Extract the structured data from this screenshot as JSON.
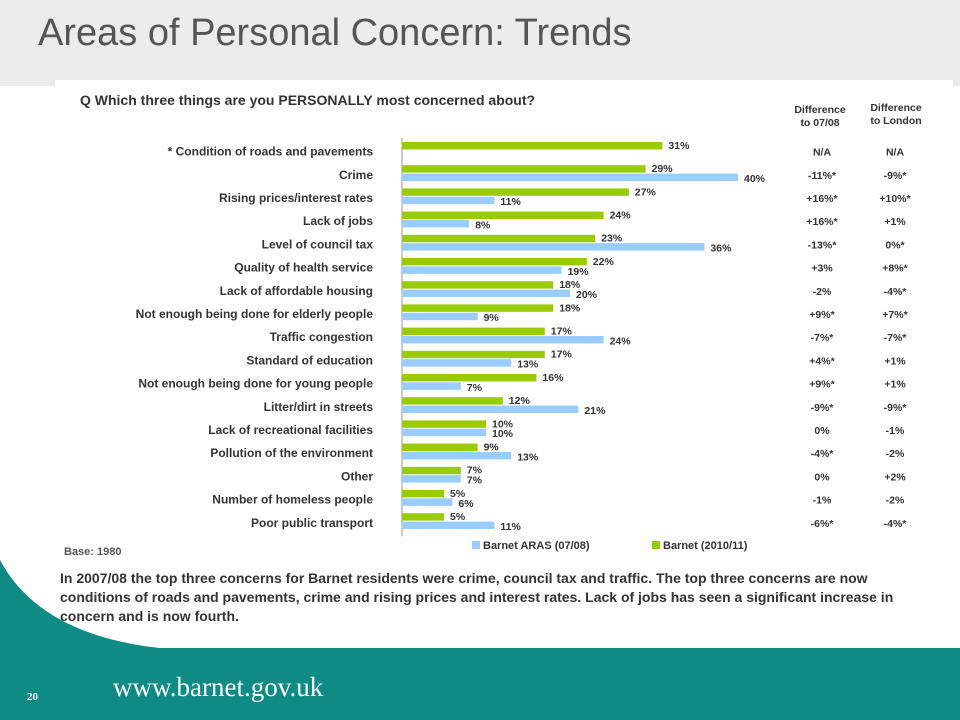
{
  "slide": {
    "title": "Areas of Personal Concern: Trends",
    "question": "Q Which three things are you PERSONALLY most concerned about?",
    "base": "Base: 1980",
    "summary": "In 2007/08 the top three concerns for Barnet residents were crime, council tax and traffic. The top three concerns are now conditions of roads and pavements, crime and rising prices and interest rates.  Lack of jobs has seen a significant increase in concern and is now fourth.",
    "footer_url": "www.barnet.gov.uk",
    "page_number": "20"
  },
  "columns": {
    "diff_0708_line1": "Difference",
    "diff_0708_line2": "to 07/08",
    "diff_london_line1": "Difference",
    "diff_london_line2": "to London"
  },
  "colors": {
    "series_2010": "#99cc00",
    "series_0708": "#99ccff",
    "footer": "#0f8b86"
  },
  "chart_data": {
    "type": "bar",
    "orientation": "horizontal",
    "categories": [
      "* Condition of roads and pavements",
      "Crime",
      "Rising prices/interest  rates",
      "Lack of jobs",
      "Level of council tax",
      "Quality of health service",
      "Lack of affordable housing",
      "Not enough being done for elderly people",
      "Traffic congestion",
      "Standard of education",
      "Not enough being done for young people",
      "Litter/dirt in streets",
      "Lack of recreational facilities",
      "Pollution of the environment",
      "Other",
      "Number of homeless people",
      "Poor public transport"
    ],
    "series": [
      {
        "name": "Barnet (2010/11)",
        "values": [
          31,
          29,
          27,
          24,
          23,
          22,
          18,
          18,
          17,
          17,
          16,
          12,
          10,
          9,
          7,
          5,
          5
        ]
      },
      {
        "name": "Barnet ARAS (07/08)",
        "values": [
          null,
          40,
          11,
          8,
          36,
          19,
          20,
          9,
          24,
          13,
          7,
          21,
          10,
          13,
          7,
          6,
          11
        ]
      }
    ],
    "value_labels": {
      "Barnet (2010/11)": [
        "31%",
        "29%",
        "27%",
        "24%",
        "23%",
        "22%",
        "18%",
        "18%",
        "17%",
        "17%",
        "16%",
        "12%",
        "10%",
        "9%",
        "7%",
        "5%",
        "5%"
      ],
      "Barnet ARAS (07/08)": [
        "",
        "40%",
        "11%",
        "8%",
        "36%",
        "19%",
        "20%",
        "9%",
        "24%",
        "13%",
        "7%",
        "21%",
        "10%",
        "13%",
        "7%",
        "6%",
        "11%"
      ]
    },
    "diff_to_0708": [
      "N/A",
      "-11%*",
      "+16%*",
      "+16%*",
      "-13%*",
      "+3%",
      "-2%",
      "+9%*",
      "-7%*",
      "+4%*",
      "+9%*",
      "-9%*",
      "0%",
      "-4%*",
      "0%",
      "-1%",
      "-6%*"
    ],
    "diff_to_london": [
      "N/A",
      "-9%*",
      "+10%*",
      "+1%",
      "0%*",
      "+8%*",
      "-4%*",
      "+7%*",
      "-7%*",
      "+1%",
      "+1%",
      "-9%*",
      "-1%",
      "-2%",
      "+2%",
      "-2%",
      "-4%*"
    ],
    "legend_order": [
      "Barnet ARAS (07/08)",
      "Barnet (2010/11)"
    ],
    "legend_position": "bottom",
    "xlim": [
      0,
      45
    ],
    "grid": false
  }
}
